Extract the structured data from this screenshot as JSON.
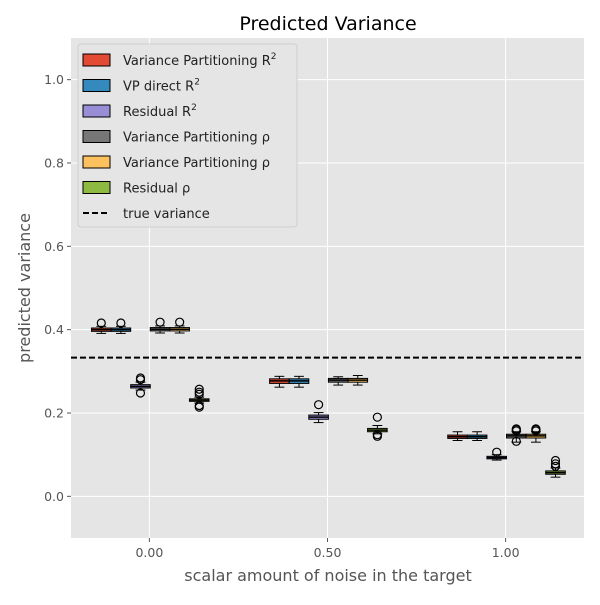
{
  "chart_data": {
    "type": "box",
    "title": "Predicted Variance",
    "xlabel": "scalar amount of noise in the target",
    "ylabel": "predicted variance",
    "xlim": [
      -0.22,
      1.22
    ],
    "ylim": [
      -0.1,
      1.1
    ],
    "xticks": [
      0.0,
      0.5,
      1.0
    ],
    "xtick_labels": [
      "0.00",
      "0.50",
      "1.00"
    ],
    "yticks": [
      0.0,
      0.2,
      0.4,
      0.6,
      0.8,
      1.0
    ],
    "ytick_labels": [
      "0.0",
      "0.2",
      "0.4",
      "0.6",
      "0.8",
      "1.0"
    ],
    "grid": true,
    "legend_position": "top-left",
    "reference_line": {
      "label": "true variance",
      "y": 0.333,
      "style": "dashed",
      "color": "#000000"
    },
    "box_width": 0.055,
    "series": [
      {
        "name": "Variance Partitioning $R^2$",
        "legend_label": "Variance Partitioning R",
        "legend_sup": "2",
        "legend_italic": false,
        "color": "#E24A33",
        "boxes": [
          {
            "x": -0.135,
            "whislo": 0.391,
            "q1": 0.396,
            "med": 0.4,
            "q3": 0.404,
            "whishi": 0.408,
            "fliers": [
              0.416
            ]
          },
          {
            "x": 0.365,
            "whislo": 0.262,
            "q1": 0.271,
            "med": 0.277,
            "q3": 0.282,
            "whishi": 0.288,
            "fliers": []
          },
          {
            "x": 0.865,
            "whislo": 0.134,
            "q1": 0.139,
            "med": 0.143,
            "q3": 0.147,
            "whishi": 0.155,
            "fliers": []
          }
        ]
      },
      {
        "name": "VP direct $R^2$",
        "legend_label": "VP direct R",
        "legend_sup": "2",
        "legend_italic": false,
        "color": "#348ABD",
        "boxes": [
          {
            "x": -0.08,
            "whislo": 0.391,
            "q1": 0.396,
            "med": 0.4,
            "q3": 0.404,
            "whishi": 0.408,
            "fliers": [
              0.416
            ]
          },
          {
            "x": 0.42,
            "whislo": 0.262,
            "q1": 0.271,
            "med": 0.277,
            "q3": 0.282,
            "whishi": 0.288,
            "fliers": []
          },
          {
            "x": 0.92,
            "whislo": 0.134,
            "q1": 0.139,
            "med": 0.143,
            "q3": 0.147,
            "whishi": 0.155,
            "fliers": []
          }
        ]
      },
      {
        "name": "Residual $R^2$",
        "legend_label": "Residual R",
        "legend_sup": "2",
        "legend_italic": false,
        "color": "#988ED5",
        "boxes": [
          {
            "x": -0.025,
            "whislo": 0.255,
            "q1": 0.26,
            "med": 0.264,
            "q3": 0.268,
            "whishi": 0.274,
            "fliers": [
              0.248,
              0.28,
              0.284
            ]
          },
          {
            "x": 0.475,
            "whislo": 0.177,
            "q1": 0.185,
            "med": 0.19,
            "q3": 0.195,
            "whishi": 0.201,
            "fliers": [
              0.22
            ]
          },
          {
            "x": 0.975,
            "whislo": 0.087,
            "q1": 0.09,
            "med": 0.093,
            "q3": 0.096,
            "whishi": 0.1,
            "fliers": [
              0.106
            ]
          }
        ]
      },
      {
        "name": "Variance Partitioning $\\rho$",
        "legend_label": "Variance Partitioning ρ",
        "legend_sup": "",
        "legend_italic": false,
        "color": "#777777",
        "boxes": [
          {
            "x": 0.03,
            "whislo": 0.392,
            "q1": 0.397,
            "med": 0.401,
            "q3": 0.405,
            "whishi": 0.409,
            "fliers": [
              0.418
            ]
          },
          {
            "x": 0.53,
            "whislo": 0.267,
            "q1": 0.274,
            "med": 0.279,
            "q3": 0.283,
            "whishi": 0.287,
            "fliers": []
          },
          {
            "x": 1.03,
            "whislo": 0.13,
            "q1": 0.14,
            "med": 0.145,
            "q3": 0.149,
            "whishi": 0.155,
            "fliers": [
              0.132,
              0.157,
              0.16,
              0.162
            ]
          }
        ]
      },
      {
        "name": "Variance Partitioning $\\rho$",
        "legend_label": "Variance Partitioning ρ",
        "legend_sup": "",
        "legend_italic": false,
        "color": "#FBC15E",
        "boxes": [
          {
            "x": 0.085,
            "whislo": 0.392,
            "q1": 0.397,
            "med": 0.401,
            "q3": 0.405,
            "whishi": 0.409,
            "fliers": [
              0.418
            ]
          },
          {
            "x": 0.585,
            "whislo": 0.267,
            "q1": 0.274,
            "med": 0.279,
            "q3": 0.283,
            "whishi": 0.29,
            "fliers": []
          },
          {
            "x": 1.085,
            "whislo": 0.13,
            "q1": 0.14,
            "med": 0.145,
            "q3": 0.149,
            "whishi": 0.155,
            "fliers": [
              0.157,
              0.16,
              0.162
            ]
          }
        ]
      },
      {
        "name": "Residual $\\rho$",
        "legend_label": "Residual ρ",
        "legend_sup": "",
        "legend_italic": false,
        "color": "#8EBA42",
        "boxes": [
          {
            "x": 0.14,
            "whislo": 0.224,
            "q1": 0.228,
            "med": 0.231,
            "q3": 0.234,
            "whishi": 0.238,
            "fliers": [
              0.214,
              0.218,
              0.245,
              0.25,
              0.257
            ]
          },
          {
            "x": 0.64,
            "whislo": 0.15,
            "q1": 0.155,
            "med": 0.159,
            "q3": 0.163,
            "whishi": 0.17,
            "fliers": [
              0.144,
              0.148,
              0.19
            ]
          },
          {
            "x": 1.14,
            "whislo": 0.046,
            "q1": 0.053,
            "med": 0.057,
            "q3": 0.061,
            "whishi": 0.068,
            "fliers": [
              0.072,
              0.078,
              0.086
            ]
          }
        ]
      }
    ]
  }
}
